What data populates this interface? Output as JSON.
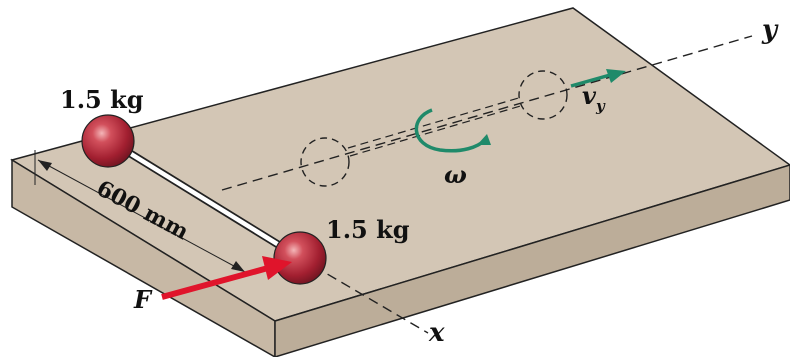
{
  "labels": {
    "mass_top": "1.5 kg",
    "mass_bottom": "1.5 kg",
    "distance": "600 mm",
    "force": "F",
    "omega": "ω",
    "velocity": "v",
    "velocity_subscript": "y",
    "axis_x": "x",
    "axis_y": "y"
  },
  "colors": {
    "plate_top": "#d3c6b5",
    "plate_side_front": "#c7b8a5",
    "plate_side_right": "#bcad99",
    "mass": "#b5283a",
    "force_arrow": "#e0142b",
    "motion_arrows": "#1f8a6a",
    "outline": "#222222"
  },
  "icons": {
    "mass_sphere": "sphere",
    "rotation_arrow": "curved-arrow",
    "velocity_arrow": "arrow-right",
    "force_arrow": "arrow-right"
  }
}
